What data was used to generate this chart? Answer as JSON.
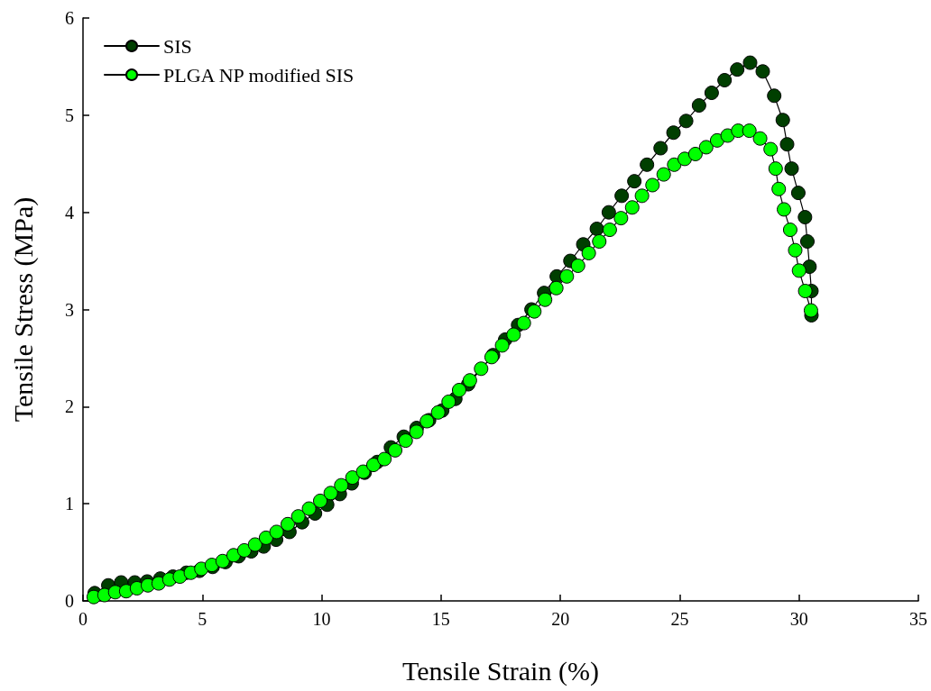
{
  "chart_data": {
    "type": "line",
    "xlabel": "Tensile Strain (%)",
    "ylabel": "Tensile Stress (MPa)",
    "xlim": [
      0,
      35
    ],
    "xticks": [
      0,
      5,
      10,
      15,
      20,
      25,
      30,
      35
    ],
    "ylim": [
      0,
      6
    ],
    "yticks": [
      0,
      1,
      2,
      3,
      4,
      5,
      6
    ],
    "grid": false,
    "legend": "top left",
    "marker": "circle",
    "line_style": "solid",
    "series": [
      {
        "name": "SIS",
        "color": "#003f00",
        "x": [
          0.49,
          1.06,
          1.6,
          2.17,
          2.69,
          3.24,
          3.77,
          4.33,
          4.88,
          5.43,
          5.97,
          6.52,
          7.05,
          7.57,
          8.09,
          8.65,
          9.18,
          9.72,
          10.23,
          10.76,
          11.26,
          11.8,
          12.33,
          12.9,
          13.44,
          13.98,
          14.5,
          15.05,
          15.6,
          16.14,
          16.67,
          17.18,
          17.69,
          18.23,
          18.79,
          19.32,
          19.85,
          20.42,
          20.96,
          21.53,
          22.03,
          22.57,
          23.1,
          23.63,
          24.2,
          24.74,
          25.27,
          25.81,
          26.34,
          26.88,
          27.41,
          27.95,
          28.48,
          28.96,
          29.32,
          29.5,
          29.69,
          29.97,
          30.25,
          30.35,
          30.44,
          30.52,
          30.52
        ],
        "values": [
          0.08,
          0.16,
          0.19,
          0.19,
          0.2,
          0.23,
          0.25,
          0.29,
          0.31,
          0.35,
          0.4,
          0.46,
          0.51,
          0.56,
          0.63,
          0.71,
          0.81,
          0.9,
          0.99,
          1.1,
          1.21,
          1.32,
          1.43,
          1.58,
          1.69,
          1.78,
          1.86,
          1.96,
          2.08,
          2.23,
          null,
          2.53,
          2.69,
          2.84,
          3.0,
          3.17,
          3.34,
          3.5,
          3.67,
          3.83,
          4.0,
          4.17,
          4.32,
          4.49,
          4.66,
          4.82,
          4.94,
          5.1,
          5.23,
          5.36,
          5.47,
          5.54,
          5.45,
          5.2,
          4.95,
          4.7,
          4.45,
          4.2,
          3.95,
          3.7,
          3.44,
          3.19,
          2.94
        ]
      },
      {
        "name": "PLGA NP modified SIS",
        "color": "#00ff00",
        "x": [
          0.45,
          0.9,
          1.35,
          1.81,
          2.26,
          2.72,
          3.17,
          3.62,
          4.06,
          4.52,
          4.96,
          5.4,
          5.85,
          6.31,
          6.76,
          7.21,
          7.67,
          8.11,
          8.58,
          9.02,
          9.47,
          9.94,
          10.38,
          10.82,
          11.29,
          11.74,
          12.17,
          12.63,
          13.08,
          13.52,
          13.97,
          14.41,
          14.88,
          15.32,
          15.76,
          16.21,
          16.68,
          17.12,
          17.56,
          18.04,
          18.47,
          18.91,
          19.36,
          19.83,
          20.27,
          20.74,
          21.19,
          21.63,
          22.07,
          22.54,
          23.01,
          23.42,
          23.86,
          24.33,
          24.77,
          25.21,
          25.66,
          26.11,
          26.57,
          27.01,
          27.45,
          27.92,
          28.37,
          28.81,
          29.02,
          29.15,
          29.37,
          29.63,
          29.84,
          30.0,
          30.26,
          30.5
        ],
        "values": [
          0.04,
          0.06,
          0.09,
          0.1,
          0.13,
          0.16,
          0.18,
          0.22,
          0.25,
          0.29,
          0.33,
          0.37,
          0.41,
          0.47,
          0.52,
          0.58,
          0.65,
          0.71,
          0.79,
          0.87,
          0.95,
          1.03,
          1.11,
          1.19,
          1.27,
          1.33,
          1.4,
          1.46,
          1.55,
          1.65,
          1.74,
          1.85,
          1.94,
          2.05,
          2.17,
          2.27,
          2.39,
          2.51,
          2.63,
          2.74,
          2.86,
          2.98,
          3.1,
          3.22,
          3.34,
          3.45,
          3.58,
          3.7,
          3.82,
          3.94,
          4.05,
          4.17,
          4.28,
          4.39,
          4.49,
          4.55,
          4.6,
          4.67,
          4.74,
          4.79,
          4.84,
          4.84,
          4.76,
          4.65,
          4.45,
          4.24,
          4.03,
          3.82,
          3.61,
          3.4,
          3.19,
          2.99
        ]
      }
    ]
  }
}
